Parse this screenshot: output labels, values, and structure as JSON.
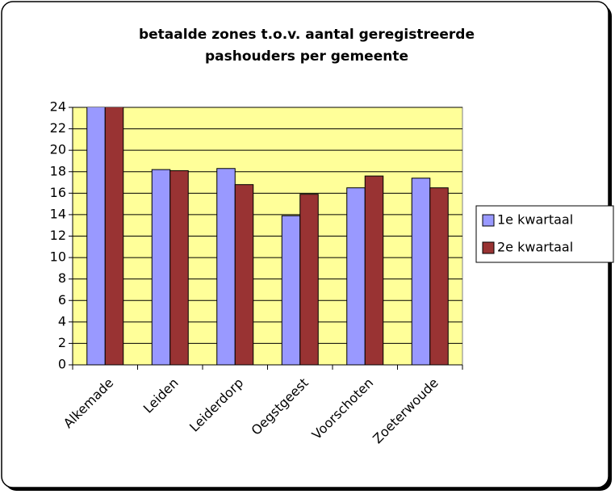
{
  "chart_data": {
    "type": "bar",
    "title": [
      "betaalde zones t.o.v. aantal geregistreerde",
      "pashouders per gemeente"
    ],
    "categories": [
      "Alkemade",
      "Leiden",
      "Leiderdorp",
      "Oegstgeest",
      "Voorschoten",
      "Zoeterwoude"
    ],
    "series": [
      {
        "name": "1e kwartaal",
        "color": "#9999ff",
        "values": [
          25,
          18.2,
          18.3,
          13.9,
          16.5,
          17.4
        ]
      },
      {
        "name": "2e kwartaal",
        "color": "#993333",
        "values": [
          25,
          18.1,
          16.8,
          15.9,
          17.6,
          16.5
        ]
      }
    ],
    "ylim": [
      0,
      24
    ],
    "yticks": [
      0,
      2,
      4,
      6,
      8,
      10,
      12,
      14,
      16,
      18,
      20,
      22,
      24
    ],
    "grid": true,
    "legend": "right",
    "plot_background": "#ffff99"
  }
}
